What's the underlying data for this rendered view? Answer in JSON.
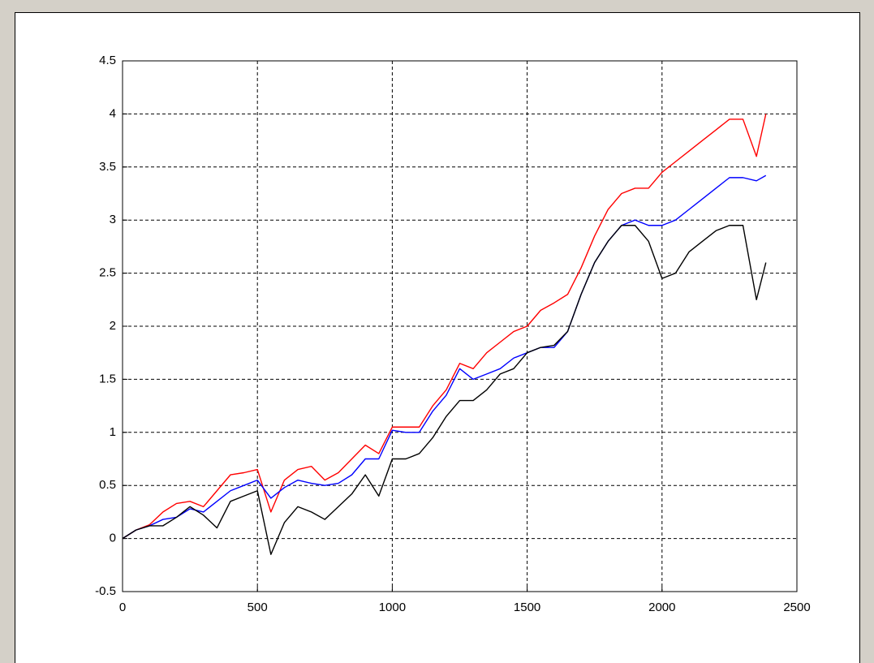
{
  "chart_data": {
    "type": "line",
    "x": [
      0,
      50,
      100,
      150,
      200,
      250,
      300,
      350,
      400,
      450,
      500,
      550,
      600,
      650,
      700,
      750,
      800,
      850,
      900,
      950,
      1000,
      1050,
      1100,
      1150,
      1200,
      1250,
      1300,
      1350,
      1400,
      1450,
      1500,
      1550,
      1600,
      1650,
      1700,
      1750,
      1800,
      1850,
      1900,
      1950,
      2000,
      2050,
      2100,
      2150,
      2200,
      2250,
      2300,
      2350,
      2385
    ],
    "series": [
      {
        "color": "#ff0000",
        "values": [
          0,
          0.08,
          0.13,
          0.25,
          0.33,
          0.35,
          0.3,
          0.45,
          0.6,
          0.62,
          0.65,
          0.25,
          0.55,
          0.65,
          0.68,
          0.55,
          0.62,
          0.75,
          0.88,
          0.8,
          1.05,
          1.05,
          1.05,
          1.25,
          1.4,
          1.65,
          1.6,
          1.75,
          1.85,
          1.95,
          2.0,
          2.15,
          2.22,
          2.3,
          2.55,
          2.85,
          3.1,
          3.25,
          3.3,
          3.3,
          3.45,
          3.55,
          3.65,
          3.75,
          3.85,
          3.95,
          3.95,
          3.6,
          4.0
        ]
      },
      {
        "color": "#0000ff",
        "values": [
          0,
          0.08,
          0.12,
          0.18,
          0.2,
          0.28,
          0.25,
          0.35,
          0.45,
          0.5,
          0.55,
          0.38,
          0.48,
          0.55,
          0.52,
          0.5,
          0.52,
          0.6,
          0.75,
          0.75,
          1.02,
          1.0,
          1.0,
          1.2,
          1.35,
          1.6,
          1.5,
          1.55,
          1.6,
          1.7,
          1.75,
          1.8,
          1.8,
          1.95,
          2.3,
          2.6,
          2.8,
          2.95,
          3.0,
          2.95,
          2.95,
          3.0,
          3.1,
          3.2,
          3.3,
          3.4,
          3.4,
          3.37,
          3.42
        ]
      },
      {
        "color": "#000000",
        "values": [
          0,
          0.08,
          0.12,
          0.12,
          0.2,
          0.3,
          0.22,
          0.1,
          0.35,
          0.4,
          0.45,
          -0.15,
          0.15,
          0.3,
          0.25,
          0.18,
          0.3,
          0.42,
          0.6,
          0.4,
          0.75,
          0.75,
          0.8,
          0.95,
          1.15,
          1.3,
          1.3,
          1.4,
          1.55,
          1.6,
          1.75,
          1.8,
          1.82,
          1.95,
          2.3,
          2.6,
          2.8,
          2.95,
          2.95,
          2.8,
          2.45,
          2.5,
          2.7,
          2.8,
          2.9,
          2.95,
          2.95,
          2.25,
          2.6
        ]
      }
    ],
    "xlim": [
      0,
      2500
    ],
    "xticks": [
      0,
      500,
      1000,
      1500,
      2000,
      2500
    ],
    "ylim": [
      -0.5,
      4.5
    ],
    "yticks": [
      -0.5,
      0,
      0.5,
      1,
      1.5,
      2,
      2.5,
      3,
      3.5,
      4,
      4.5
    ],
    "grid": true
  }
}
